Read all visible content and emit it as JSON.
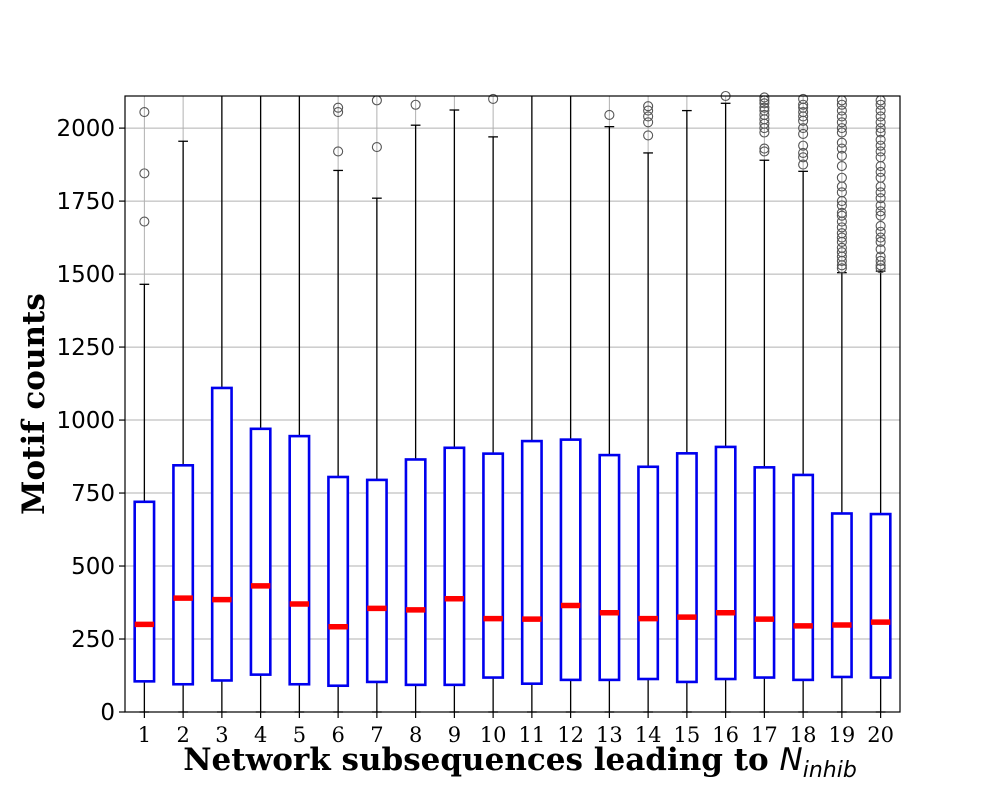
{
  "chart_data": {
    "type": "box",
    "title": "",
    "xlabel": "Network subsequences leading to ",
    "xlabel_symbol": "N",
    "xlabel_symbol_sub": "inhib",
    "ylabel": "Motif counts",
    "ylim": [
      0,
      2110
    ],
    "grid": true,
    "yticks": [
      0,
      250,
      500,
      750,
      1000,
      1250,
      1500,
      1750,
      2000
    ],
    "categories": [
      "1",
      "2",
      "3",
      "4",
      "5",
      "6",
      "7",
      "8",
      "9",
      "10",
      "11",
      "12",
      "13",
      "14",
      "15",
      "16",
      "17",
      "18",
      "19",
      "20"
    ],
    "boxes": [
      {
        "q1": 105,
        "median": 300,
        "q3": 720,
        "whisker_low": 0,
        "whisker_high": 1465,
        "outliers": [
          1680,
          1845,
          2055
        ]
      },
      {
        "q1": 95,
        "median": 390,
        "q3": 845,
        "whisker_low": 0,
        "whisker_high": 1955,
        "outliers": []
      },
      {
        "q1": 108,
        "median": 385,
        "q3": 1110,
        "whisker_low": 0,
        "whisker_high": 2110,
        "outliers": []
      },
      {
        "q1": 128,
        "median": 432,
        "q3": 970,
        "whisker_low": 0,
        "whisker_high": 2110,
        "outliers": []
      },
      {
        "q1": 95,
        "median": 370,
        "q3": 945,
        "whisker_low": 0,
        "whisker_high": 2110,
        "outliers": []
      },
      {
        "q1": 90,
        "median": 292,
        "q3": 805,
        "whisker_low": 0,
        "whisker_high": 1855,
        "outliers": [
          1920,
          2055,
          2070
        ]
      },
      {
        "q1": 103,
        "median": 355,
        "q3": 795,
        "whisker_low": 0,
        "whisker_high": 1760,
        "outliers": [
          1935,
          2095
        ]
      },
      {
        "q1": 93,
        "median": 350,
        "q3": 865,
        "whisker_low": 0,
        "whisker_high": 2010,
        "outliers": [
          2080
        ]
      },
      {
        "q1": 93,
        "median": 388,
        "q3": 905,
        "whisker_low": 0,
        "whisker_high": 2062,
        "outliers": []
      },
      {
        "q1": 118,
        "median": 320,
        "q3": 885,
        "whisker_low": 0,
        "whisker_high": 1970,
        "outliers": [
          2100
        ]
      },
      {
        "q1": 97,
        "median": 318,
        "q3": 928,
        "whisker_low": 0,
        "whisker_high": 2110,
        "outliers": []
      },
      {
        "q1": 110,
        "median": 365,
        "q3": 933,
        "whisker_low": 0,
        "whisker_high": 2110,
        "outliers": []
      },
      {
        "q1": 110,
        "median": 340,
        "q3": 880,
        "whisker_low": 0,
        "whisker_high": 2005,
        "outliers": [
          2045
        ]
      },
      {
        "q1": 113,
        "median": 320,
        "q3": 840,
        "whisker_low": 0,
        "whisker_high": 1915,
        "outliers": [
          1975,
          2020,
          2040,
          2060,
          2075
        ]
      },
      {
        "q1": 103,
        "median": 325,
        "q3": 886,
        "whisker_low": 0,
        "whisker_high": 2060,
        "outliers": []
      },
      {
        "q1": 113,
        "median": 340,
        "q3": 908,
        "whisker_low": 0,
        "whisker_high": 2085,
        "outliers": [
          2110
        ]
      },
      {
        "q1": 118,
        "median": 318,
        "q3": 838,
        "whisker_low": 0,
        "whisker_high": 1890,
        "outliers": [
          1920,
          1930,
          1985,
          2000,
          2015,
          2030,
          2045,
          2060,
          2070,
          2085,
          2095,
          2105
        ]
      },
      {
        "q1": 110,
        "median": 295,
        "q3": 812,
        "whisker_low": 0,
        "whisker_high": 1852,
        "outliers": [
          1875,
          1900,
          1915,
          1940,
          1980,
          2000,
          2025,
          2040,
          2055,
          2070,
          2080,
          2100
        ]
      },
      {
        "q1": 120,
        "median": 298,
        "q3": 680,
        "whisker_low": 0,
        "whisker_high": 1505,
        "outliers": [
          1520,
          1530,
          1545,
          1560,
          1575,
          1590,
          1610,
          1625,
          1640,
          1660,
          1680,
          1700,
          1710,
          1735,
          1750,
          1780,
          1800,
          1830,
          1870,
          1905,
          1930,
          1950,
          1985,
          2000,
          2020,
          2040,
          2060,
          2080,
          2095
        ]
      },
      {
        "q1": 118,
        "median": 308,
        "q3": 678,
        "whisker_low": 0,
        "whisker_high": 1510,
        "outliers": [
          1520,
          1530,
          1545,
          1560,
          1585,
          1610,
          1625,
          1645,
          1665,
          1700,
          1715,
          1735,
          1760,
          1780,
          1800,
          1830,
          1850,
          1870,
          1900,
          1920,
          1940,
          1960,
          1985,
          2000,
          2020,
          2040,
          2060,
          2080,
          2095
        ]
      }
    ],
    "colors": {
      "box": "#0000ee",
      "median": "#ff0000",
      "whisker": "#000000",
      "grid": "#b0b0b0",
      "outlier": "#555555"
    }
  }
}
